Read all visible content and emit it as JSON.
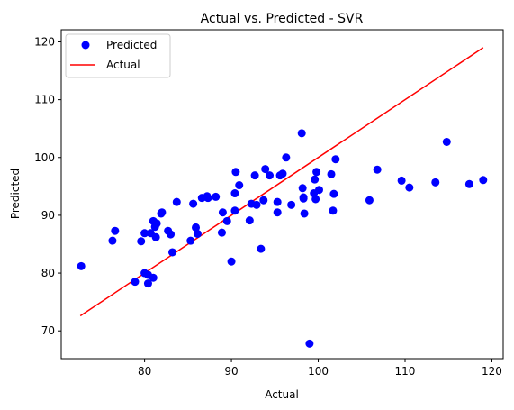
{
  "chart_data": {
    "type": "scatter",
    "title": "Actual vs. Predicted - SVR",
    "xlabel": "Actual",
    "ylabel": "Predicted",
    "xlim": [
      70.4,
      121.3
    ],
    "ylim": [
      65.2,
      122.1
    ],
    "xticks": [
      80,
      90,
      100,
      110,
      120
    ],
    "yticks": [
      70,
      80,
      90,
      100,
      110,
      120
    ],
    "grid": false,
    "legend_position": "top-left",
    "series": [
      {
        "name": "Predicted",
        "kind": "scatter",
        "color": "#0000ff",
        "points": [
          [
            72.7,
            81.2
          ],
          [
            76.3,
            85.6
          ],
          [
            76.6,
            87.3
          ],
          [
            78.9,
            78.5
          ],
          [
            79.6,
            85.5
          ],
          [
            80.0,
            86.9
          ],
          [
            80.0,
            80.0
          ],
          [
            80.4,
            78.2
          ],
          [
            80.4,
            79.7
          ],
          [
            80.7,
            86.9
          ],
          [
            81.0,
            89.0
          ],
          [
            81.0,
            79.2
          ],
          [
            81.2,
            88.0
          ],
          [
            81.3,
            86.2
          ],
          [
            81.4,
            88.6
          ],
          [
            81.9,
            90.3
          ],
          [
            82.0,
            90.5
          ],
          [
            82.7,
            87.3
          ],
          [
            83.0,
            86.7
          ],
          [
            83.2,
            83.6
          ],
          [
            83.7,
            92.3
          ],
          [
            85.3,
            85.6
          ],
          [
            85.6,
            92.0
          ],
          [
            85.9,
            87.9
          ],
          [
            86.1,
            86.8
          ],
          [
            86.6,
            93.0
          ],
          [
            87.2,
            93.3
          ],
          [
            87.3,
            93.0
          ],
          [
            88.2,
            93.2
          ],
          [
            88.9,
            87.0
          ],
          [
            89.0,
            90.5
          ],
          [
            89.5,
            89.0
          ],
          [
            90.0,
            82.0
          ],
          [
            90.4,
            90.8
          ],
          [
            90.4,
            93.8
          ],
          [
            90.5,
            97.5
          ],
          [
            90.9,
            95.2
          ],
          [
            92.1,
            89.1
          ],
          [
            92.3,
            92.0
          ],
          [
            92.7,
            96.9
          ],
          [
            92.9,
            91.8
          ],
          [
            93.4,
            84.2
          ],
          [
            93.7,
            92.6
          ],
          [
            93.9,
            98.0
          ],
          [
            94.4,
            96.9
          ],
          [
            95.3,
            90.5
          ],
          [
            95.3,
            92.3
          ],
          [
            95.6,
            96.9
          ],
          [
            95.9,
            97.2
          ],
          [
            96.3,
            100.0
          ],
          [
            96.9,
            91.8
          ],
          [
            98.1,
            104.2
          ],
          [
            98.2,
            94.7
          ],
          [
            98.3,
            92.9
          ],
          [
            98.3,
            93.1
          ],
          [
            98.4,
            90.3
          ],
          [
            99.0,
            67.8
          ],
          [
            99.5,
            93.8
          ],
          [
            99.6,
            96.2
          ],
          [
            99.7,
            92.8
          ],
          [
            99.8,
            97.5
          ],
          [
            100.1,
            94.4
          ],
          [
            101.5,
            97.1
          ],
          [
            101.7,
            90.8
          ],
          [
            101.8,
            93.7
          ],
          [
            102.0,
            99.7
          ],
          [
            105.9,
            92.6
          ],
          [
            106.8,
            97.9
          ],
          [
            109.6,
            96.0
          ],
          [
            110.5,
            94.8
          ],
          [
            113.5,
            95.7
          ],
          [
            114.8,
            102.7
          ],
          [
            117.4,
            95.4
          ],
          [
            119.0,
            96.1
          ]
        ]
      },
      {
        "name": "Actual",
        "kind": "line",
        "color": "#ff0000",
        "points": [
          [
            72.6,
            72.6
          ],
          [
            119.0,
            119.0
          ]
        ]
      }
    ]
  }
}
